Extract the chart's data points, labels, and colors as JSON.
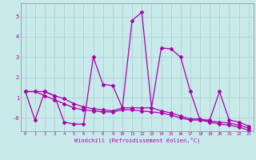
{
  "xlabel": "Windchill (Refroidissement éolien,°C)",
  "bg_color": "#c8eaea",
  "grid_color": "#aacccc",
  "line_color": "#aa00aa",
  "hours": [
    0,
    1,
    2,
    3,
    4,
    5,
    6,
    7,
    8,
    9,
    10,
    11,
    12,
    13,
    14,
    15,
    16,
    17,
    18,
    19,
    20,
    21,
    22,
    23
  ],
  "series1": [
    1.3,
    -0.1,
    1.3,
    1.1,
    -0.2,
    -0.3,
    -0.3,
    3.0,
    1.65,
    1.6,
    0.5,
    4.8,
    5.2,
    0.5,
    3.45,
    3.4,
    3.0,
    1.3,
    -0.1,
    -0.1,
    1.3,
    -0.1,
    -0.2,
    -0.4
  ],
  "series2": [
    1.3,
    1.3,
    1.3,
    1.1,
    0.95,
    0.7,
    0.55,
    0.45,
    0.4,
    0.35,
    0.5,
    0.5,
    0.5,
    0.5,
    0.35,
    0.25,
    0.1,
    -0.05,
    -0.05,
    -0.15,
    -0.2,
    -0.25,
    -0.35,
    -0.5
  ],
  "series3": [
    1.3,
    1.3,
    1.1,
    0.9,
    0.7,
    0.5,
    0.4,
    0.35,
    0.3,
    0.3,
    0.4,
    0.4,
    0.35,
    0.3,
    0.25,
    0.15,
    0.0,
    -0.1,
    -0.1,
    -0.2,
    -0.3,
    -0.35,
    -0.45,
    -0.6
  ],
  "ylim": [
    -0.65,
    5.65
  ],
  "xlim": [
    -0.5,
    23.5
  ],
  "yticks": [
    0,
    1,
    2,
    3,
    4,
    5
  ],
  "ytick_labels": [
    "-0",
    "1",
    "2",
    "3",
    "4",
    "5"
  ],
  "xticks": [
    0,
    1,
    2,
    3,
    4,
    5,
    6,
    7,
    8,
    9,
    10,
    11,
    12,
    13,
    14,
    15,
    16,
    17,
    18,
    19,
    20,
    21,
    22,
    23
  ]
}
